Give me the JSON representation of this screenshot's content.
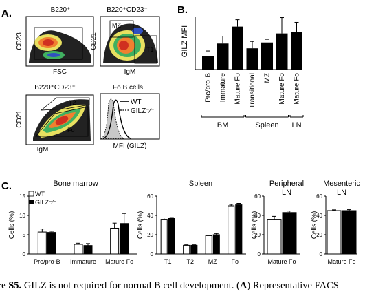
{
  "panel_a": {
    "letter": "A.",
    "plot1": {
      "title": "B220⁺",
      "xlabel": "FSC",
      "ylabel": "CD23"
    },
    "plot2": {
      "title": "B220⁺CD23⁻",
      "xlabel": "IgM",
      "ylabel": "CD21",
      "gate_mz": "MZ",
      "gate_t1": "T1"
    },
    "plot3": {
      "title": "B220⁺CD23⁺",
      "xlabel": "IgM",
      "ylabel": "CD21",
      "gate_t2": "T2",
      "gate_fo": "Fo"
    },
    "plot4": {
      "title": "Fo B cells",
      "xlabel": "MFI (GILZ)",
      "legend_wt": "WT",
      "legend_ko": "GILZ⁻⁄⁻"
    }
  },
  "panel_b": {
    "letter": "B.",
    "chart_data": {
      "type": "bar",
      "ylabel": "GILZ MFI",
      "categories": [
        "Pre/pro-B",
        "Immature",
        "Mature Fo",
        "Transitional",
        "MZ",
        "Mature Fo",
        "Mature Fo"
      ],
      "values": [
        125,
        245,
        405,
        200,
        255,
        340,
        355
      ],
      "errors": [
        50,
        70,
        65,
        65,
        30,
        150,
        90
      ],
      "ylim": [
        0,
        500
      ],
      "groups": [
        {
          "label": "BM",
          "span": [
            0,
            2
          ]
        },
        {
          "label": "Spleen",
          "span": [
            3,
            5
          ]
        },
        {
          "label": "LN",
          "span": [
            6,
            6
          ]
        }
      ],
      "bar_color": "#000000"
    }
  },
  "panel_c": {
    "letter": "C.",
    "legend": {
      "wt": "WT",
      "ko": "GILZ⁻⁄⁻"
    },
    "ylabel": "Cells (%)",
    "chart_data": [
      {
        "type": "bar",
        "title": "Bone marrow",
        "categories": [
          "Pre/pro-B",
          "Immature",
          "Mature Fo"
        ],
        "ylim": [
          0,
          15
        ],
        "yticks": [
          "0",
          "5",
          "10",
          "15"
        ],
        "series": [
          {
            "name": "WT",
            "values": [
              5.7,
              2.5,
              6.7
            ],
            "errors": [
              0.8,
              0.3,
              1.3
            ],
            "color": "#ffffff"
          },
          {
            "name": "GILZ⁻⁄⁻",
            "values": [
              5.6,
              2.2,
              7.9
            ],
            "errors": [
              0.3,
              0.5,
              2.6
            ],
            "color": "#000000"
          }
        ]
      },
      {
        "type": "bar",
        "title": "Spleen",
        "categories": [
          "T1",
          "T2",
          "MZ",
          "Fo"
        ],
        "ylim": [
          0,
          60
        ],
        "yticks": [
          "0",
          "20",
          "40",
          "60"
        ],
        "series": [
          {
            "name": "WT",
            "values": [
              36,
              9,
              19,
              50
            ],
            "errors": [
              1.5,
              0.5,
              0.5,
              1.5
            ],
            "color": "#ffffff"
          },
          {
            "name": "GILZ⁻⁄⁻",
            "values": [
              37,
              9,
              20,
              51
            ],
            "errors": [
              0.8,
              0.5,
              1.2,
              1.5
            ],
            "color": "#000000"
          }
        ]
      },
      {
        "type": "bar",
        "title": "Peripheral LN",
        "categories": [
          "Mature Fo"
        ],
        "ylim": [
          0,
          60
        ],
        "yticks": [
          "0",
          "20",
          "40",
          "60"
        ],
        "series": [
          {
            "name": "WT",
            "values": [
              36
            ],
            "errors": [
              3
            ],
            "color": "#ffffff"
          },
          {
            "name": "GILZ⁻⁄⁻",
            "values": [
              43
            ],
            "errors": [
              1.5
            ],
            "color": "#000000"
          }
        ]
      },
      {
        "type": "bar",
        "title": "Mesenteric LN",
        "categories": [
          "Mature Fo"
        ],
        "ylim": [
          0,
          60
        ],
        "yticks": [
          "0",
          "20",
          "40",
          "60"
        ],
        "series": [
          {
            "name": "WT",
            "values": [
              45
            ],
            "errors": [
              0.8
            ],
            "color": "#ffffff"
          },
          {
            "name": "GILZ⁻⁄⁻",
            "values": [
              45
            ],
            "errors": [
              1.0
            ],
            "color": "#000000"
          }
        ]
      }
    ]
  },
  "caption": {
    "fig_label": "re S5.",
    "text": " GILZ is not required for normal B cell development. (",
    "a_letter": "A",
    "tail": ") Representative FACS"
  }
}
